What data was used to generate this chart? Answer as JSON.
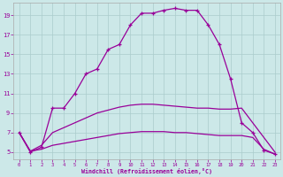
{
  "bg_color": "#cce8e8",
  "line_color": "#990099",
  "grid_color": "#aacccc",
  "xlabel": "Windchill (Refroidissement éolien,°C)",
  "xlim": [
    -0.5,
    23.5
  ],
  "ylim": [
    4.3,
    20.3
  ],
  "xticks": [
    0,
    1,
    2,
    3,
    4,
    5,
    6,
    7,
    8,
    9,
    10,
    11,
    12,
    13,
    14,
    15,
    16,
    17,
    18,
    19,
    20,
    21,
    22,
    23
  ],
  "yticks": [
    5,
    7,
    9,
    11,
    13,
    15,
    17,
    19
  ],
  "curve_main_x": [
    0,
    1,
    2,
    3,
    4,
    5,
    6,
    7,
    8,
    9,
    10,
    11,
    12,
    13,
    14,
    15,
    16,
    17,
    18,
    19,
    20,
    21,
    22,
    23
  ],
  "curve_main_y": [
    7.0,
    5.0,
    5.5,
    9.5,
    9.5,
    11.0,
    13.0,
    13.5,
    15.5,
    16.0,
    18.0,
    19.2,
    19.2,
    19.5,
    19.7,
    19.5,
    19.5,
    18.0,
    16.0,
    12.5,
    8.0,
    7.0,
    5.2,
    4.8
  ],
  "curve_low_x": [
    0,
    1,
    2,
    3,
    4,
    5,
    6,
    7,
    8,
    9,
    10,
    11,
    12,
    13,
    14,
    15,
    16,
    17,
    18,
    19,
    20,
    21,
    22,
    23
  ],
  "curve_low_y": [
    7.0,
    5.1,
    5.3,
    5.7,
    5.9,
    6.1,
    6.3,
    6.5,
    6.7,
    6.9,
    7.0,
    7.1,
    7.1,
    7.1,
    7.0,
    7.0,
    6.9,
    6.8,
    6.7,
    6.7,
    6.7,
    6.5,
    5.3,
    4.8
  ],
  "curve_mid_x": [
    0,
    1,
    2,
    3,
    4,
    5,
    6,
    7,
    8,
    9,
    10,
    11,
    12,
    13,
    14,
    15,
    16,
    17,
    18,
    19,
    20,
    21,
    22,
    23
  ],
  "curve_mid_y": [
    7.0,
    5.1,
    5.7,
    7.0,
    7.5,
    8.0,
    8.5,
    9.0,
    9.3,
    9.6,
    9.8,
    9.9,
    9.9,
    9.8,
    9.7,
    9.6,
    9.5,
    9.5,
    9.4,
    9.4,
    9.5,
    8.0,
    6.5,
    5.0
  ]
}
